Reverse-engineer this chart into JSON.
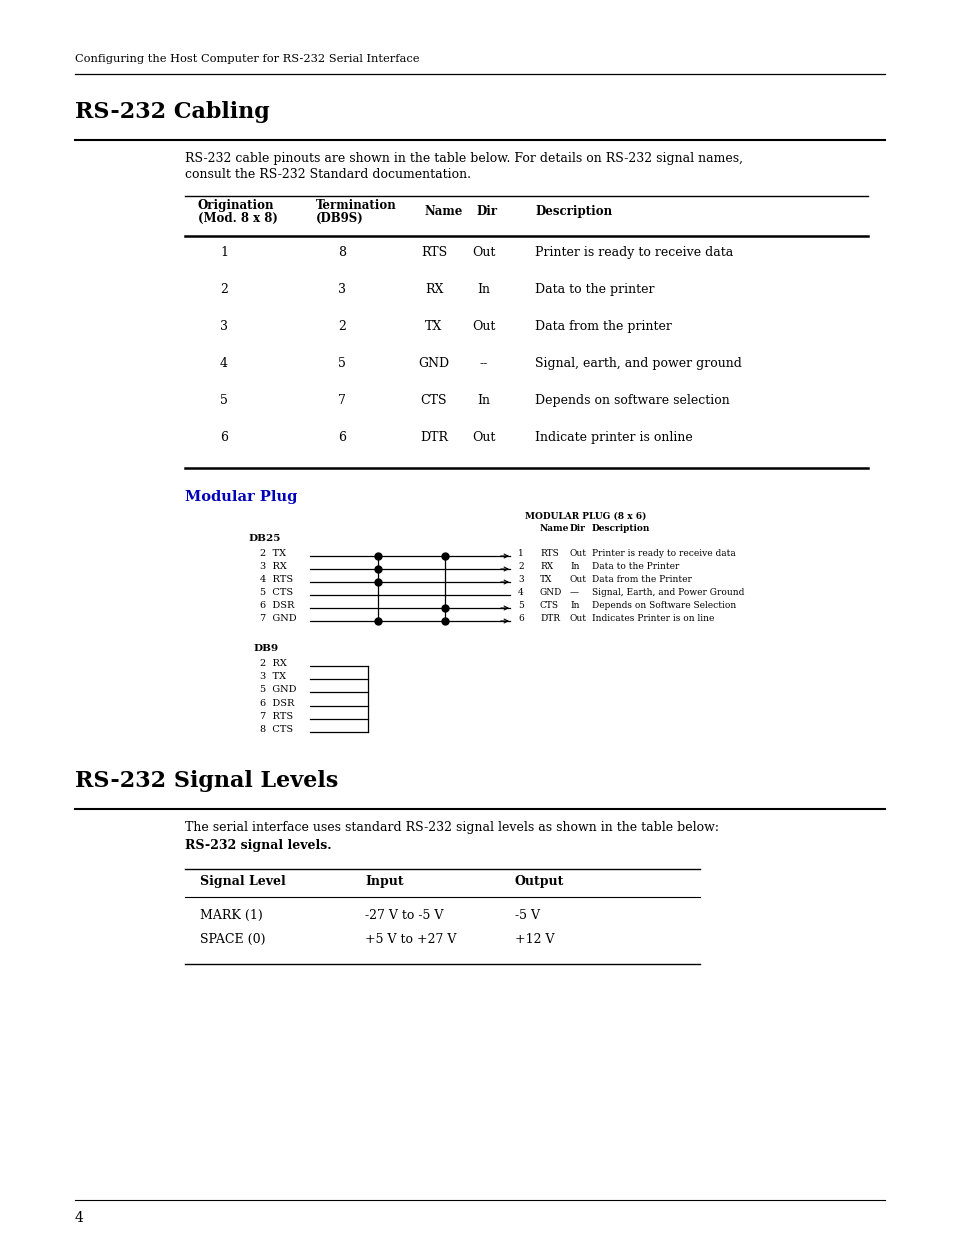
{
  "bg_color": "#ffffff",
  "header_text": "Configuring the Host Computer for RS-232 Serial Interface",
  "section1_title": "RS-232 Cabling",
  "section1_body_line1": "RS-232 cable pinouts are shown in the table below. For details on RS-232 signal names,",
  "section1_body_line2": "consult the RS-232 Standard documentation.",
  "table1_rows": [
    [
      "1",
      "8",
      "RTS",
      "Out",
      "Printer is ready to receive data"
    ],
    [
      "2",
      "3",
      "RX",
      "In",
      "Data to the printer"
    ],
    [
      "3",
      "2",
      "TX",
      "Out",
      "Data from the printer"
    ],
    [
      "4",
      "5",
      "GND",
      "--",
      "Signal, earth, and power ground"
    ],
    [
      "5",
      "7",
      "CTS",
      "In",
      "Depends on software selection"
    ],
    [
      "6",
      "6",
      "DTR",
      "Out",
      "Indicate printer is online"
    ]
  ],
  "modular_plug_title": "Modular Plug",
  "modular_plug_title_color": "#0000bb",
  "db25_pins": [
    "2  TX",
    "3  RX",
    "4  RTS",
    "5  CTS",
    "6  DSR",
    "7  GND"
  ],
  "db9_pins": [
    "2  RX",
    "3  TX",
    "5  GND",
    "6  DSR",
    "7  RTS",
    "8  CTS"
  ],
  "mod_plug_header": "MODULAR PLUG (8 x 6)",
  "mod_plug_pins": [
    [
      "1",
      "RTS",
      "Out",
      "Printer is ready to receive data"
    ],
    [
      "2",
      "RX",
      "In",
      "Data to the Printer"
    ],
    [
      "3",
      "TX",
      "Out",
      "Data from the Printer"
    ],
    [
      "4",
      "GND",
      "—",
      "Signal, Earth, and Power Ground"
    ],
    [
      "5",
      "CTS",
      "In",
      "Depends on Software Selection"
    ],
    [
      "6",
      "DTR",
      "Out",
      "Indicates Printer is on line"
    ]
  ],
  "section2_title": "RS-232 Signal Levels",
  "section2_body": "The serial interface uses standard RS-232 signal levels as shown in the table below:",
  "table2_caption": "RS-232 signal levels.",
  "table2_headers": [
    "Signal Level",
    "Input",
    "Output"
  ],
  "table2_rows": [
    [
      "MARK (1)",
      "-27 V to -5 V",
      "-5 V"
    ],
    [
      "SPACE (0)",
      "+5 V to +27 V",
      "+12 V"
    ]
  ],
  "page_number": "4"
}
